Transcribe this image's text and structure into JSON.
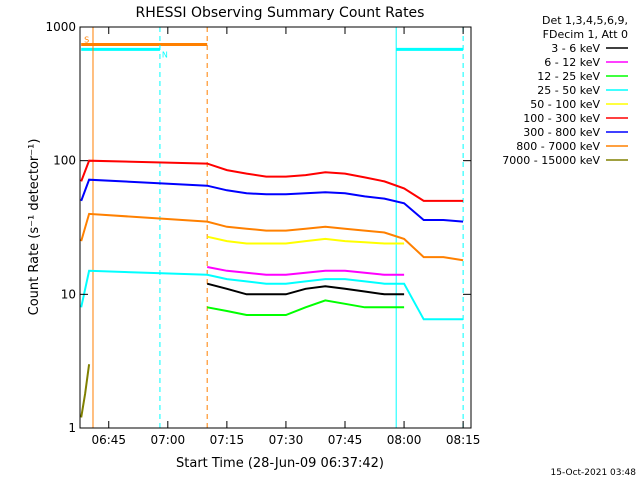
{
  "chart_data": {
    "type": "line",
    "title": "RHESSI Observing Summary Count Rates",
    "xlabel": "Start Time (28-Jun-09 06:37:42)",
    "ylabel": "Count Rate (s⁻¹ detector⁻¹)",
    "xscale": "time",
    "yscale": "log",
    "xlim": [
      "06:37:42",
      "08:17:00"
    ],
    "ylim": [
      1,
      1000
    ],
    "x_ticks": [
      "06:45",
      "07:00",
      "07:15",
      "07:30",
      "07:45",
      "08:00",
      "08:15"
    ],
    "y_ticks": [
      "1",
      "10",
      "100",
      "1000"
    ],
    "legend_header": [
      "Det 1,3,4,5,6,9,",
      "FDecim 1, Att 0"
    ],
    "legend_position": "right",
    "timestamp": "15-Oct-2021 03:48",
    "series": [
      {
        "name": "3 - 6 keV",
        "color": "#000000",
        "x": [
          "07:10",
          "07:15",
          "07:20",
          "07:25",
          "07:30",
          "07:35",
          "07:40",
          "07:45",
          "07:50",
          "07:55",
          "08:00"
        ],
        "y": [
          12,
          11,
          10,
          10,
          10,
          11,
          11.5,
          11,
          10.5,
          10,
          10
        ]
      },
      {
        "name": "6 - 12 keV",
        "color": "#ff00ff",
        "x": [
          "07:10",
          "07:15",
          "07:20",
          "07:25",
          "07:30",
          "07:35",
          "07:40",
          "07:45",
          "07:50",
          "07:55",
          "08:00"
        ],
        "y": [
          16,
          15,
          14.5,
          14,
          14,
          14.5,
          15,
          15,
          14.5,
          14,
          14
        ]
      },
      {
        "name": "12 - 25 keV",
        "color": "#00ff00",
        "x": [
          "07:10",
          "07:15",
          "07:20",
          "07:25",
          "07:30",
          "07:35",
          "07:40",
          "07:45",
          "07:50",
          "07:55",
          "08:00"
        ],
        "y": [
          8,
          7.5,
          7,
          7,
          7,
          8,
          9,
          8.5,
          8,
          8,
          8
        ]
      },
      {
        "name": "25 - 50 keV",
        "color": "#00ffff",
        "x": [
          "06:38",
          "06:40",
          "07:10",
          "07:15",
          "07:20",
          "07:25",
          "07:30",
          "07:35",
          "07:40",
          "07:45",
          "07:50",
          "07:55",
          "08:00",
          "08:05",
          "08:10",
          "08:15"
        ],
        "y": [
          8,
          15,
          14,
          13,
          12.5,
          12,
          12,
          12.5,
          13,
          13,
          12.5,
          12,
          12,
          6.5,
          6.5,
          6.5
        ]
      },
      {
        "name": "50 - 100 keV",
        "color": "#ffff00",
        "x": [
          "07:10",
          "07:15",
          "07:20",
          "07:25",
          "07:30",
          "07:35",
          "07:40",
          "07:45",
          "07:50",
          "07:55",
          "08:00"
        ],
        "y": [
          27,
          25,
          24,
          24,
          24,
          25,
          26,
          25,
          24.5,
          24,
          24
        ]
      },
      {
        "name": "100 - 300 keV",
        "color": "#ff0000",
        "x": [
          "06:38",
          "06:40",
          "07:10",
          "07:15",
          "07:20",
          "07:25",
          "07:30",
          "07:35",
          "07:40",
          "07:45",
          "07:50",
          "07:55",
          "08:00",
          "08:05",
          "08:10",
          "08:15"
        ],
        "y": [
          70,
          100,
          95,
          85,
          80,
          76,
          76,
          78,
          82,
          80,
          75,
          70,
          62,
          50,
          50,
          50
        ]
      },
      {
        "name": "300 - 800 keV",
        "color": "#0000ff",
        "x": [
          "06:38",
          "06:40",
          "07:10",
          "07:15",
          "07:20",
          "07:25",
          "07:30",
          "07:35",
          "07:40",
          "07:45",
          "07:50",
          "07:55",
          "08:00",
          "08:05",
          "08:10",
          "08:15"
        ],
        "y": [
          50,
          72,
          65,
          60,
          57,
          56,
          56,
          57,
          58,
          57,
          54,
          52,
          48,
          36,
          36,
          35
        ]
      },
      {
        "name": "800 - 7000 keV",
        "color": "#ff8000",
        "x": [
          "06:38",
          "06:40",
          "07:10",
          "07:15",
          "07:20",
          "07:25",
          "07:30",
          "07:35",
          "07:40",
          "07:45",
          "07:50",
          "07:55",
          "08:00",
          "08:05",
          "08:10",
          "08:15"
        ],
        "y": [
          25,
          40,
          35,
          32,
          31,
          30,
          30,
          31,
          32,
          31,
          30,
          29,
          26,
          19,
          19,
          18
        ]
      },
      {
        "name": "7000 - 15000 keV",
        "color": "#808000",
        "x": [
          "06:38",
          "06:39",
          "06:40"
        ],
        "y": [
          1.2,
          1.8,
          3
        ]
      }
    ],
    "annotations": [
      {
        "type": "orange-hline",
        "x": [
          "06:38",
          "07:10"
        ],
        "y": 740,
        "label": "S"
      },
      {
        "type": "cyan-hline",
        "x": [
          "06:38",
          "06:58"
        ],
        "y": 680,
        "label": "N"
      },
      {
        "type": "cyan-hline",
        "x": [
          "07:58",
          "08:15"
        ],
        "y": 680
      },
      {
        "type": "orange-vline",
        "x": "06:41"
      },
      {
        "type": "orange-vline-dashed",
        "x": "07:10"
      },
      {
        "type": "cyan-vline",
        "x": "07:58"
      },
      {
        "type": "cyan-vline-dashed",
        "x": "06:58"
      },
      {
        "type": "cyan-vline-dashed",
        "x": "08:15"
      }
    ]
  }
}
